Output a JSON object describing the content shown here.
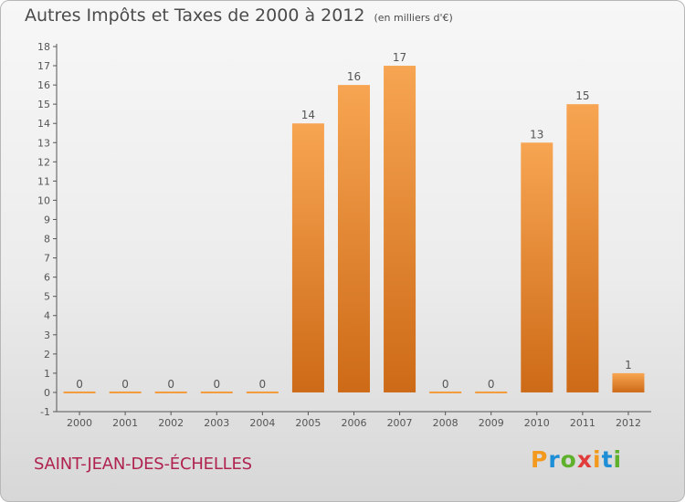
{
  "header": {
    "title": "Autres Impôts et Taxes de 2000 à 2012",
    "unit": "(en milliers d'€)"
  },
  "footer": {
    "place": "SAINT-JEAN-DES-ÉCHELLES"
  },
  "logo": {
    "text": "Proxiti",
    "colors": [
      "#f39a1e",
      "#1e8fd6",
      "#5fb12c",
      "#e23b3b"
    ]
  },
  "colors": {
    "bar_top": "#f7a552",
    "bar_bottom": "#cd6a17",
    "zero_bar": "#f39a3a",
    "axis": "#555555",
    "grid": "#c9c9c9",
    "label": "#555555"
  },
  "chart_data": {
    "type": "bar",
    "title": "Autres Impôts et Taxes de 2000 à 2012",
    "subtitle": "(en milliers d'€)",
    "xlabel": "",
    "ylabel": "",
    "categories": [
      "2000",
      "2001",
      "2002",
      "2003",
      "2004",
      "2005",
      "2006",
      "2007",
      "2008",
      "2009",
      "2010",
      "2011",
      "2012"
    ],
    "values": [
      0,
      0,
      0,
      0,
      0,
      14,
      16,
      17,
      0,
      0,
      13,
      15,
      1
    ],
    "ylim": [
      -1,
      18
    ],
    "yticks": [
      -1,
      0,
      1,
      2,
      3,
      4,
      5,
      6,
      7,
      8,
      9,
      10,
      11,
      12,
      13,
      14,
      15,
      16,
      17,
      18
    ],
    "grid": false,
    "legend": "none"
  }
}
